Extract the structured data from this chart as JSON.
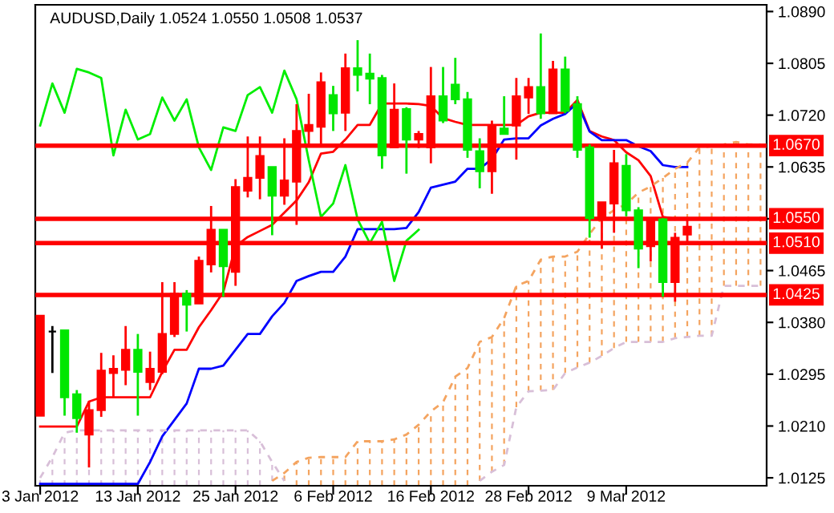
{
  "chart_data": {
    "type": "candlestick",
    "title": "AUDUSD,Daily 1.0524 1.0550 1.0508 1.0537",
    "categories": [
      "3 Jan 2012",
      null,
      null,
      null,
      null,
      null,
      null,
      null,
      "13 Jan 2012",
      null,
      null,
      null,
      null,
      null,
      null,
      null,
      "25 Jan 2012",
      null,
      null,
      null,
      null,
      null,
      null,
      null,
      "6 Feb 2012",
      null,
      null,
      null,
      null,
      null,
      null,
      null,
      "16 Feb 2012",
      null,
      null,
      null,
      null,
      null,
      null,
      null,
      "28 Feb 2012",
      null,
      null,
      null,
      null,
      null,
      null,
      null,
      "9 Mar 2012",
      null,
      null,
      null,
      null,
      null,
      null,
      null,
      null,
      null,
      null,
      null
    ],
    "ohlc": [
      [
        1.0227,
        1.0391,
        1.0227,
        1.0391
      ],
      [
        1.0365,
        1.0374,
        1.0297,
        1.0365
      ],
      [
        1.0367,
        1.0367,
        1.0227,
        1.0257
      ],
      [
        1.0262,
        1.0269,
        1.0199,
        1.0223
      ],
      [
        1.0196,
        1.0251,
        1.0142,
        1.0236
      ],
      [
        1.0236,
        1.033,
        1.0225,
        1.0301
      ],
      [
        1.0297,
        1.0326,
        1.0256,
        1.0304
      ],
      [
        1.0302,
        1.0374,
        1.0277,
        1.0335
      ],
      [
        1.0335,
        1.0361,
        1.0227,
        1.0299
      ],
      [
        1.0282,
        1.0332,
        1.0269,
        1.0304
      ],
      [
        1.0299,
        1.0446,
        1.0295,
        1.0361
      ],
      [
        1.0361,
        1.0446,
        1.0356,
        1.0427
      ],
      [
        1.0427,
        1.0433,
        1.0365,
        1.0409
      ],
      [
        1.0411,
        1.0488,
        1.0411,
        1.0481
      ],
      [
        1.0475,
        1.0571,
        1.0462,
        1.0532
      ],
      [
        1.0532,
        1.0532,
        1.0422,
        1.0472
      ],
      [
        1.0463,
        1.0615,
        1.044,
        1.0602
      ],
      [
        1.0596,
        1.0685,
        1.0585,
        1.0617
      ],
      [
        1.0617,
        1.0685,
        1.0582,
        1.0653
      ],
      [
        1.0635,
        1.0635,
        1.0523,
        1.0588
      ],
      [
        1.0588,
        1.0682,
        1.0573,
        1.0613
      ],
      [
        1.0611,
        1.0738,
        1.054,
        1.0694
      ],
      [
        1.0694,
        1.0755,
        1.0672,
        1.0704
      ],
      [
        1.0701,
        1.079,
        1.0672,
        1.0774
      ],
      [
        1.0753,
        1.0768,
        1.0694,
        1.0723
      ],
      [
        1.0724,
        1.0821,
        1.0694,
        1.0797
      ],
      [
        1.0797,
        1.0843,
        1.0759,
        1.0786
      ],
      [
        1.0788,
        1.0821,
        1.0738,
        1.078
      ],
      [
        1.0781,
        1.0786,
        1.0632,
        1.0654
      ],
      [
        1.0667,
        1.0772,
        1.0667,
        1.0729
      ],
      [
        1.073,
        1.0733,
        1.0624,
        1.068
      ],
      [
        1.068,
        1.0694,
        1.0666,
        1.0689
      ],
      [
        1.0667,
        1.0799,
        1.0641,
        1.0751
      ],
      [
        1.0751,
        1.0799,
        1.0707,
        1.0711
      ],
      [
        1.077,
        1.0814,
        1.0738,
        1.0746
      ],
      [
        1.0746,
        1.0758,
        1.065,
        1.0663
      ],
      [
        1.0661,
        1.0682,
        1.06,
        1.0628
      ],
      [
        1.0628,
        1.0711,
        1.0591,
        1.0703
      ],
      [
        1.0698,
        1.0751,
        1.0689,
        1.0689
      ],
      [
        1.0703,
        1.0781,
        1.0647,
        1.0751
      ],
      [
        1.0749,
        1.0781,
        1.0722,
        1.0766
      ],
      [
        1.0766,
        1.0854,
        1.0714,
        1.0723
      ],
      [
        1.0723,
        1.0809,
        1.0723,
        1.0795
      ],
      [
        1.0795,
        1.0816,
        1.0723,
        1.0727
      ],
      [
        1.0738,
        1.0751,
        1.065,
        1.0663
      ],
      [
        1.0667,
        1.0672,
        1.0519,
        1.0551
      ],
      [
        1.0551,
        1.0577,
        1.0501,
        1.0577
      ],
      [
        1.0575,
        1.0663,
        1.0527,
        1.0641
      ],
      [
        1.0637,
        1.0656,
        1.0554,
        1.0564
      ],
      [
        1.0564,
        1.0569,
        1.0469,
        1.0501
      ],
      [
        1.0505,
        1.0549,
        1.048,
        1.0549
      ],
      [
        1.0549,
        1.0551,
        1.0422,
        1.0446
      ],
      [
        1.0446,
        1.0527,
        1.0414,
        1.0519
      ],
      [
        1.0524,
        1.055,
        1.0508,
        1.0537
      ],
      null,
      null,
      null,
      null,
      null,
      null
    ],
    "colors": [
      "#ff0000",
      "#000000",
      "#00e600",
      "#00e600",
      "#ff0000",
      "#ff0000",
      "#ff0000",
      "#ff0000",
      "#00e600",
      "#ff0000",
      "#ff0000",
      "#ff0000",
      "#00e600",
      "#ff0000",
      "#ff0000",
      "#00e600",
      "#ff0000",
      "#ff0000",
      "#ff0000",
      "#00e600",
      "#ff0000",
      "#ff0000",
      "#ff0000",
      "#ff0000",
      "#00e600",
      "#ff0000",
      "#00e600",
      "#00e600",
      "#00e600",
      "#ff0000",
      "#00e600",
      "#ff0000",
      "#ff0000",
      "#00e600",
      "#00e600",
      "#00e600",
      "#00e600",
      "#ff0000",
      "#00e600",
      "#ff0000",
      "#ff0000",
      "#00e600",
      "#ff0000",
      "#00e600",
      "#00e600",
      "#00e600",
      "#ff0000",
      "#ff0000",
      "#00e600",
      "#00e600",
      "#ff0000",
      "#00e600",
      "#ff0000",
      "#ff0000",
      null,
      null,
      null,
      null,
      null,
      null
    ],
    "series": [
      {
        "type": "line",
        "color": "#ff0000",
        "values": [
          1.0209,
          1.0209,
          1.0209,
          1.0209,
          1.025,
          1.0257,
          1.0257,
          1.0257,
          1.0257,
          1.0257,
          1.0299,
          1.0335,
          1.0335,
          1.0372,
          1.04,
          1.043,
          1.0505,
          1.052,
          1.053,
          1.054,
          1.056,
          1.058,
          1.061,
          1.0657,
          1.066,
          1.068,
          1.0704,
          1.0704,
          1.0739,
          1.0739,
          1.0739,
          1.0738,
          1.0735,
          1.0715,
          1.0709,
          1.0704,
          1.0704,
          1.0704,
          1.0704,
          1.0704,
          1.0718,
          1.0724,
          1.0724,
          1.0724,
          1.0745,
          1.0694,
          1.0685,
          1.0679,
          1.0659,
          1.0646,
          1.062,
          1.0553,
          1.055,
          1.0549,
          null,
          null,
          null,
          null,
          null,
          null
        ]
      },
      {
        "type": "line",
        "color": "#0000ff",
        "values": [
          1.0115,
          1.0115,
          1.0115,
          1.0115,
          1.0115,
          1.0115,
          1.0115,
          1.0115,
          1.0115,
          1.0151,
          1.0193,
          1.022,
          1.0247,
          1.0304,
          1.0304,
          1.0309,
          1.0335,
          1.0361,
          1.0361,
          1.039,
          1.0412,
          1.0448,
          1.0456,
          1.0463,
          1.0463,
          1.0488,
          1.0533,
          1.0533,
          1.0533,
          1.0533,
          1.0535,
          1.0561,
          1.0601,
          1.0606,
          1.0611,
          1.0632,
          1.0632,
          1.0648,
          1.068,
          1.0682,
          1.0682,
          1.0703,
          1.0714,
          1.0722,
          1.074,
          1.0693,
          1.0679,
          1.0679,
          1.0679,
          1.0669,
          1.0661,
          1.0638,
          1.0635,
          1.0635,
          null,
          null,
          null,
          null,
          null,
          null
        ]
      },
      {
        "type": "line",
        "color": "#00ee00",
        "values": [
          1.0703,
          1.0772,
          1.0724,
          1.0796,
          1.079,
          1.0781,
          1.0654,
          1.0729,
          1.068,
          1.0689,
          1.0749,
          1.0711,
          1.0746,
          1.0667,
          1.063,
          1.07,
          1.0694,
          1.0753,
          1.0766,
          1.0724,
          1.0793,
          1.0746,
          1.0646,
          1.0553,
          1.0575,
          1.0638,
          1.0549,
          1.051,
          1.0545,
          1.0448,
          1.0514,
          1.0532,
          null,
          null,
          null,
          null,
          null,
          null,
          null,
          null,
          null,
          null,
          null,
          null,
          null,
          null,
          null,
          null,
          null,
          null,
          null,
          null,
          null,
          null,
          null,
          null,
          null,
          null,
          null,
          null
        ]
      },
      {
        "type": "line",
        "color": "#f4a460",
        "line_style": "dashed",
        "values": [
          null,
          null,
          null,
          null,
          null,
          null,
          null,
          null,
          null,
          null,
          null,
          null,
          null,
          null,
          null,
          null,
          null,
          null,
          null,
          1.012,
          1.0133,
          1.0151,
          1.0158,
          1.0159,
          1.0159,
          1.0159,
          1.0185,
          1.0185,
          1.0185,
          1.0188,
          1.0196,
          1.0212,
          1.0234,
          1.0249,
          1.0291,
          1.0305,
          1.0348,
          1.0356,
          1.0387,
          1.044,
          1.0448,
          1.0483,
          1.0488,
          1.0488,
          1.0496,
          1.0525,
          1.0551,
          1.0564,
          1.0574,
          1.0593,
          1.0603,
          1.0617,
          1.0632,
          1.0642,
          1.0667,
          1.0669,
          1.0672,
          1.0676,
          1.0672,
          1.0672
        ]
      },
      {
        "type": "line",
        "color": "#d8bfd8",
        "line_style": "dashed",
        "values": [
          1.0125,
          1.0159,
          1.0199,
          1.0203,
          1.0203,
          1.0203,
          1.0203,
          1.0203,
          1.0203,
          1.0203,
          1.0203,
          1.0203,
          1.0203,
          1.0203,
          1.0203,
          1.0203,
          1.0203,
          1.0203,
          1.0185,
          1.0151,
          1.012,
          null,
          null,
          null,
          null,
          null,
          null,
          null,
          null,
          null,
          null,
          null,
          null,
          null,
          null,
          null,
          1.012,
          1.0135,
          1.0146,
          1.0241,
          1.0267,
          1.0268,
          1.0269,
          1.0297,
          1.0306,
          1.0314,
          1.0325,
          1.0338,
          1.0348,
          1.0348,
          1.0348,
          1.0348,
          1.0354,
          1.0356,
          1.0358,
          1.0358,
          1.044,
          1.044,
          1.044,
          1.044
        ]
      }
    ],
    "ylim": [
      1.0112,
      1.0901
    ],
    "yticks": [
      {
        "value": 1.089,
        "label": "1.0890"
      },
      {
        "value": 1.0805,
        "label": "1.0805"
      },
      {
        "value": 1.072,
        "label": "1.0720"
      },
      {
        "value": 1.0635,
        "label": "1.0635"
      },
      {
        "value": 1.055,
        "label": null
      },
      {
        "value": 1.0465,
        "label": "1.0465"
      },
      {
        "value": 1.038,
        "label": "1.0380"
      },
      {
        "value": 1.0295,
        "label": "1.0295"
      },
      {
        "value": 1.021,
        "label": "1.0210"
      },
      {
        "value": 1.0125,
        "label": "1.0125"
      }
    ],
    "ref_lines": [
      {
        "axis": "y",
        "value": 1.067,
        "label": "1.0670",
        "color": "#ff0000"
      },
      {
        "axis": "y",
        "value": 1.055,
        "label": "1.0550",
        "color": "#ff0000"
      },
      {
        "axis": "y",
        "value": 1.051,
        "label": "1.0510",
        "color": "#ff0000"
      },
      {
        "axis": "y",
        "value": 1.0425,
        "label": "1.0425",
        "color": "#ff0000"
      }
    ]
  }
}
